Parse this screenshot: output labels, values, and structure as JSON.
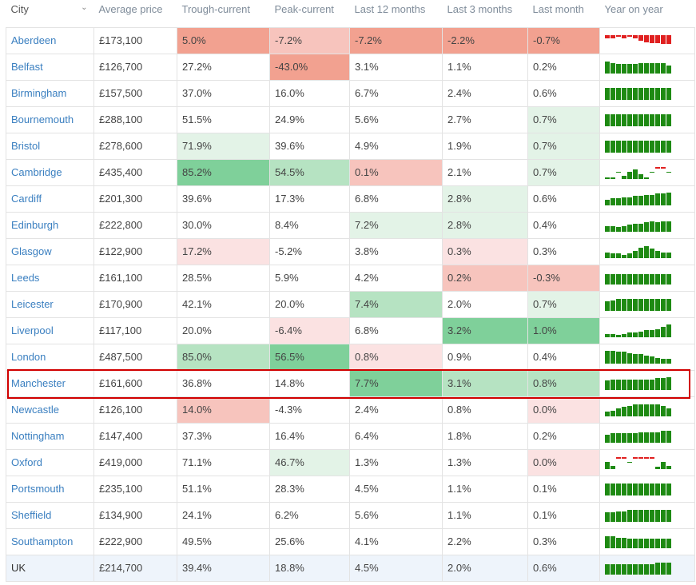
{
  "headers": [
    "City",
    "Average price",
    "Trough-current",
    "Peak-current",
    "Last 12 months",
    "Last 3 months",
    "Last month",
    "Year on year"
  ],
  "colors": {
    "link": "#3a7fc0",
    "pos_light": "#e3f3e7",
    "pos_mid": "#b6e3c2",
    "pos_strong": "#7fd09a",
    "neg_light": "#fbe2e2",
    "neg_mid": "#f7c4bd",
    "neg_strong": "#f2a190",
    "highlight_border": "#d10000",
    "spark_pos": "#1e8a13",
    "spark_neg": "#e02020"
  },
  "rows": [
    {
      "city": "Aberdeen",
      "avg": "£173,100",
      "tc": "5.0%",
      "pc": "-7.2%",
      "m12": "-7.2%",
      "m3": "-2.2%",
      "m1": "-0.7%",
      "shade": [
        "",
        "",
        "neg_strong",
        "neg_mid",
        "neg_strong",
        "neg_strong",
        "neg_strong",
        ""
      ],
      "yoy": [
        -4,
        -4,
        -2,
        -4,
        -2,
        -4,
        -6,
        -8,
        -9,
        -9,
        -10,
        -10
      ]
    },
    {
      "city": "Belfast",
      "avg": "£126,700",
      "tc": "27.2%",
      "pc": "-43.0%",
      "m12": "3.1%",
      "m3": "1.1%",
      "m1": "0.2%",
      "shade": [
        "",
        "",
        "",
        "neg_strong",
        "",
        "",
        "",
        ""
      ],
      "yoy": [
        10,
        9,
        8,
        8,
        8,
        8,
        9,
        9,
        9,
        9,
        9,
        7
      ]
    },
    {
      "city": "Birmingham",
      "avg": "£157,500",
      "tc": "37.0%",
      "pc": "16.0%",
      "m12": "6.7%",
      "m3": "2.4%",
      "m1": "0.6%",
      "shade": [
        "",
        "",
        "",
        "",
        "",
        "",
        "",
        ""
      ],
      "yoy": [
        10,
        10,
        10,
        10,
        10,
        10,
        10,
        10,
        10,
        10,
        10,
        10
      ]
    },
    {
      "city": "Bournemouth",
      "avg": "£288,100",
      "tc": "51.5%",
      "pc": "24.9%",
      "m12": "5.6%",
      "m3": "2.7%",
      "m1": "0.7%",
      "shade": [
        "",
        "",
        "",
        "",
        "",
        "",
        "pos_light",
        ""
      ],
      "yoy": [
        10,
        10,
        10,
        10,
        10,
        10,
        10,
        10,
        10,
        10,
        10,
        10
      ]
    },
    {
      "city": "Bristol",
      "avg": "£278,600",
      "tc": "71.9%",
      "pc": "39.6%",
      "m12": "4.9%",
      "m3": "1.9%",
      "m1": "0.7%",
      "shade": [
        "",
        "",
        "pos_light",
        "",
        "",
        "",
        "pos_light",
        ""
      ],
      "yoy": [
        10,
        10,
        10,
        10,
        10,
        10,
        10,
        10,
        10,
        10,
        10,
        10
      ]
    },
    {
      "city": "Cambridge",
      "avg": "£435,400",
      "tc": "85.2%",
      "pc": "54.5%",
      "m12": "0.1%",
      "m3": "2.1%",
      "m1": "0.7%",
      "shade": [
        "",
        "",
        "pos_strong",
        "pos_mid",
        "neg_mid",
        "",
        "pos_light",
        ""
      ],
      "yoy": [
        1,
        1,
        0,
        3,
        6,
        8,
        4,
        1,
        0,
        -2,
        -2,
        0
      ]
    },
    {
      "city": "Cardiff",
      "avg": "£201,300",
      "tc": "39.6%",
      "pc": "17.3%",
      "m12": "6.8%",
      "m3": "2.8%",
      "m1": "0.6%",
      "shade": [
        "",
        "",
        "",
        "",
        "",
        "pos_light",
        "",
        ""
      ],
      "yoy": [
        5,
        6,
        6,
        7,
        7,
        8,
        8,
        9,
        9,
        10,
        10,
        11
      ]
    },
    {
      "city": "Edinburgh",
      "avg": "£222,800",
      "tc": "30.0%",
      "pc": "8.4%",
      "m12": "7.2%",
      "m3": "2.8%",
      "m1": "0.4%",
      "shade": [
        "",
        "",
        "",
        "",
        "pos_light",
        "pos_light",
        "",
        ""
      ],
      "yoy": [
        5,
        5,
        4,
        5,
        6,
        7,
        7,
        8,
        9,
        8,
        9,
        9
      ]
    },
    {
      "city": "Glasgow",
      "avg": "£122,900",
      "tc": "17.2%",
      "pc": "-5.2%",
      "m12": "3.8%",
      "m3": "0.3%",
      "m1": "0.3%",
      "shade": [
        "",
        "",
        "neg_light",
        "",
        "",
        "neg_light",
        "",
        ""
      ],
      "yoy": [
        5,
        4,
        4,
        3,
        4,
        6,
        9,
        10,
        8,
        6,
        5,
        5
      ]
    },
    {
      "city": "Leeds",
      "avg": "£161,100",
      "tc": "28.5%",
      "pc": "5.9%",
      "m12": "4.2%",
      "m3": "0.2%",
      "m1": "-0.3%",
      "shade": [
        "",
        "",
        "",
        "",
        "",
        "neg_mid",
        "neg_mid",
        ""
      ],
      "yoy": [
        9,
        9,
        9,
        9,
        9,
        9,
        9,
        9,
        9,
        9,
        9,
        9
      ]
    },
    {
      "city": "Leicester",
      "avg": "£170,900",
      "tc": "42.1%",
      "pc": "20.0%",
      "m12": "7.4%",
      "m3": "2.0%",
      "m1": "0.7%",
      "shade": [
        "",
        "",
        "",
        "",
        "pos_mid",
        "",
        "pos_light",
        ""
      ],
      "yoy": [
        8,
        9,
        10,
        10,
        10,
        10,
        10,
        10,
        10,
        10,
        10,
        10
      ]
    },
    {
      "city": "Liverpool",
      "avg": "£117,100",
      "tc": "20.0%",
      "pc": "-6.4%",
      "m12": "6.8%",
      "m3": "3.2%",
      "m1": "1.0%",
      "shade": [
        "",
        "",
        "",
        "neg_light",
        "",
        "pos_strong",
        "pos_strong",
        ""
      ],
      "yoy": [
        3,
        3,
        2,
        3,
        4,
        4,
        5,
        6,
        6,
        7,
        9,
        11
      ]
    },
    {
      "city": "London",
      "avg": "£487,500",
      "tc": "85.0%",
      "pc": "56.5%",
      "m12": "0.8%",
      "m3": "0.9%",
      "m1": "0.4%",
      "shade": [
        "",
        "",
        "pos_mid",
        "pos_strong",
        "neg_light",
        "",
        "",
        ""
      ],
      "yoy": [
        11,
        11,
        10,
        10,
        9,
        8,
        8,
        7,
        6,
        5,
        4,
        4
      ]
    },
    {
      "city": "Manchester",
      "avg": "£161,600",
      "tc": "36.8%",
      "pc": "14.8%",
      "m12": "7.7%",
      "m3": "3.1%",
      "m1": "0.8%",
      "shade": [
        "",
        "",
        "",
        "",
        "pos_strong",
        "pos_mid",
        "pos_mid",
        ""
      ],
      "yoy": [
        8,
        9,
        9,
        9,
        9,
        9,
        9,
        9,
        9,
        10,
        10,
        11
      ]
    },
    {
      "city": "Newcastle",
      "avg": "£126,100",
      "tc": "14.0%",
      "pc": "-4.3%",
      "m12": "2.4%",
      "m3": "0.8%",
      "m1": "0.0%",
      "shade": [
        "",
        "",
        "neg_mid",
        "",
        "",
        "",
        "neg_light",
        ""
      ],
      "yoy": [
        4,
        5,
        7,
        8,
        9,
        10,
        10,
        10,
        10,
        10,
        9,
        7
      ]
    },
    {
      "city": "Nottingham",
      "avg": "£147,400",
      "tc": "37.3%",
      "pc": "16.4%",
      "m12": "6.4%",
      "m3": "1.8%",
      "m1": "0.2%",
      "shade": [
        "",
        "",
        "",
        "",
        "",
        "",
        "",
        ""
      ],
      "yoy": [
        7,
        8,
        8,
        8,
        8,
        8,
        9,
        9,
        9,
        9,
        10,
        10
      ]
    },
    {
      "city": "Oxford",
      "avg": "£419,000",
      "tc": "71.1%",
      "pc": "46.7%",
      "m12": "1.3%",
      "m3": "1.3%",
      "m1": "0.0%",
      "shade": [
        "",
        "",
        "",
        "pos_light",
        "",
        "",
        "neg_light",
        ""
      ],
      "yoy": [
        6,
        3,
        -1,
        -1,
        0,
        -1,
        -1,
        -1,
        -1,
        2,
        6,
        3
      ]
    },
    {
      "city": "Portsmouth",
      "avg": "£235,100",
      "tc": "51.1%",
      "pc": "28.3%",
      "m12": "4.5%",
      "m3": "1.1%",
      "m1": "0.1%",
      "shade": [
        "",
        "",
        "",
        "",
        "",
        "",
        "",
        ""
      ],
      "yoy": [
        10,
        10,
        10,
        10,
        10,
        10,
        10,
        10,
        10,
        10,
        10,
        10
      ]
    },
    {
      "city": "Sheffield",
      "avg": "£134,900",
      "tc": "24.1%",
      "pc": "6.2%",
      "m12": "5.6%",
      "m3": "1.1%",
      "m1": "0.1%",
      "shade": [
        "",
        "",
        "",
        "",
        "",
        "",
        "",
        ""
      ],
      "yoy": [
        8,
        8,
        9,
        9,
        10,
        10,
        10,
        10,
        10,
        10,
        10,
        10
      ]
    },
    {
      "city": "Southampton",
      "avg": "£222,900",
      "tc": "49.5%",
      "pc": "25.6%",
      "m12": "4.1%",
      "m3": "2.2%",
      "m1": "0.3%",
      "shade": [
        "",
        "",
        "",
        "",
        "",
        "",
        "",
        ""
      ],
      "yoy": [
        10,
        10,
        9,
        9,
        8,
        8,
        8,
        8,
        8,
        8,
        8,
        8
      ]
    },
    {
      "city": "UK",
      "avg": "£214,700",
      "tc": "39.4%",
      "pc": "18.8%",
      "m12": "4.5%",
      "m3": "2.0%",
      "m1": "0.6%",
      "shade": [
        "",
        "",
        "",
        "",
        "",
        "",
        "",
        ""
      ],
      "yoy": [
        9,
        9,
        9,
        9,
        9,
        9,
        9,
        9,
        9,
        10,
        10,
        10
      ]
    }
  ]
}
